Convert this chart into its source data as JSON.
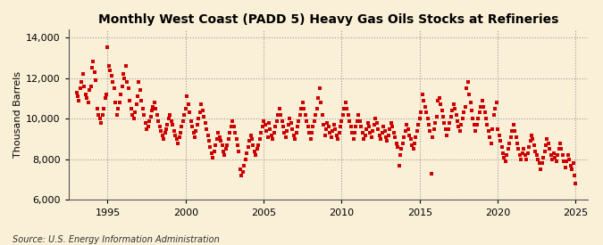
{
  "title": "Monthly West Coast (PADD 5) Heavy Gas Oils Stocks at Refineries",
  "ylabel": "Thousand Barrels",
  "source": "Source: U.S. Energy Information Administration",
  "bg_color": "#FAF0D7",
  "plot_bg_color": "#FAF0D7",
  "marker_color": "#CC0000",
  "xlim": [
    1992.5,
    2025.8
  ],
  "ylim": [
    6000,
    14400
  ],
  "yticks": [
    6000,
    8000,
    10000,
    12000,
    14000
  ],
  "xticks": [
    1995,
    2000,
    2005,
    2010,
    2015,
    2020,
    2025
  ],
  "data": [
    [
      1993.0,
      11300
    ],
    [
      1993.083,
      11100
    ],
    [
      1993.167,
      10900
    ],
    [
      1993.25,
      11500
    ],
    [
      1993.333,
      11800
    ],
    [
      1993.417,
      12200
    ],
    [
      1993.5,
      11600
    ],
    [
      1993.583,
      11200
    ],
    [
      1993.667,
      11000
    ],
    [
      1993.75,
      10800
    ],
    [
      1993.833,
      11400
    ],
    [
      1993.917,
      11600
    ],
    [
      1994.0,
      12500
    ],
    [
      1994.083,
      12800
    ],
    [
      1994.167,
      12300
    ],
    [
      1994.25,
      11900
    ],
    [
      1994.333,
      10500
    ],
    [
      1994.417,
      10200
    ],
    [
      1994.5,
      10000
    ],
    [
      1994.583,
      9800
    ],
    [
      1994.667,
      10200
    ],
    [
      1994.75,
      10500
    ],
    [
      1994.833,
      11000
    ],
    [
      1994.917,
      11200
    ],
    [
      1995.0,
      13500
    ],
    [
      1995.083,
      12600
    ],
    [
      1995.167,
      12400
    ],
    [
      1995.25,
      12100
    ],
    [
      1995.333,
      11800
    ],
    [
      1995.417,
      11500
    ],
    [
      1995.5,
      10800
    ],
    [
      1995.583,
      10200
    ],
    [
      1995.667,
      10500
    ],
    [
      1995.75,
      10800
    ],
    [
      1995.833,
      11200
    ],
    [
      1995.917,
      11600
    ],
    [
      1996.0,
      12200
    ],
    [
      1996.083,
      12000
    ],
    [
      1996.167,
      12600
    ],
    [
      1996.25,
      11800
    ],
    [
      1996.333,
      11500
    ],
    [
      1996.417,
      10900
    ],
    [
      1996.5,
      10500
    ],
    [
      1996.583,
      10200
    ],
    [
      1996.667,
      10000
    ],
    [
      1996.75,
      10300
    ],
    [
      1996.833,
      10700
    ],
    [
      1996.917,
      11100
    ],
    [
      1997.0,
      11800
    ],
    [
      1997.083,
      11400
    ],
    [
      1997.167,
      10900
    ],
    [
      1997.25,
      10500
    ],
    [
      1997.333,
      10200
    ],
    [
      1997.417,
      9800
    ],
    [
      1997.5,
      9500
    ],
    [
      1997.583,
      9600
    ],
    [
      1997.667,
      9900
    ],
    [
      1997.75,
      10100
    ],
    [
      1997.833,
      10400
    ],
    [
      1997.917,
      10600
    ],
    [
      1998.0,
      10800
    ],
    [
      1998.083,
      10500
    ],
    [
      1998.167,
      10200
    ],
    [
      1998.25,
      9900
    ],
    [
      1998.333,
      9600
    ],
    [
      1998.417,
      9400
    ],
    [
      1998.5,
      9200
    ],
    [
      1998.583,
      9000
    ],
    [
      1998.667,
      9300
    ],
    [
      1998.75,
      9500
    ],
    [
      1998.833,
      9700
    ],
    [
      1998.917,
      10000
    ],
    [
      1999.0,
      10200
    ],
    [
      1999.083,
      9900
    ],
    [
      1999.167,
      9700
    ],
    [
      1999.25,
      9400
    ],
    [
      1999.333,
      9200
    ],
    [
      1999.417,
      9000
    ],
    [
      1999.5,
      8800
    ],
    [
      1999.583,
      9100
    ],
    [
      1999.667,
      9300
    ],
    [
      1999.75,
      9600
    ],
    [
      1999.833,
      9900
    ],
    [
      1999.917,
      10200
    ],
    [
      2000.0,
      10500
    ],
    [
      2000.083,
      11100
    ],
    [
      2000.167,
      10700
    ],
    [
      2000.25,
      10300
    ],
    [
      2000.333,
      9900
    ],
    [
      2000.417,
      9600
    ],
    [
      2000.5,
      9300
    ],
    [
      2000.583,
      9100
    ],
    [
      2000.667,
      9400
    ],
    [
      2000.75,
      9700
    ],
    [
      2000.833,
      10000
    ],
    [
      2000.917,
      10300
    ],
    [
      2001.0,
      10700
    ],
    [
      2001.083,
      10400
    ],
    [
      2001.167,
      10100
    ],
    [
      2001.25,
      9800
    ],
    [
      2001.333,
      9500
    ],
    [
      2001.417,
      9200
    ],
    [
      2001.5,
      8900
    ],
    [
      2001.583,
      8600
    ],
    [
      2001.667,
      8300
    ],
    [
      2001.75,
      8100
    ],
    [
      2001.833,
      8400
    ],
    [
      2001.917,
      8700
    ],
    [
      2002.0,
      9000
    ],
    [
      2002.083,
      9300
    ],
    [
      2002.167,
      9100
    ],
    [
      2002.25,
      8900
    ],
    [
      2002.333,
      8700
    ],
    [
      2002.417,
      8400
    ],
    [
      2002.5,
      8200
    ],
    [
      2002.583,
      8500
    ],
    [
      2002.667,
      8700
    ],
    [
      2002.75,
      9000
    ],
    [
      2002.833,
      9300
    ],
    [
      2002.917,
      9600
    ],
    [
      2003.0,
      9900
    ],
    [
      2003.083,
      9600
    ],
    [
      2003.167,
      9300
    ],
    [
      2003.25,
      9000
    ],
    [
      2003.333,
      8700
    ],
    [
      2003.417,
      8400
    ],
    [
      2003.5,
      7500
    ],
    [
      2003.583,
      7200
    ],
    [
      2003.667,
      7400
    ],
    [
      2003.75,
      7700
    ],
    [
      2003.833,
      8000
    ],
    [
      2003.917,
      8300
    ],
    [
      2004.0,
      8600
    ],
    [
      2004.083,
      8900
    ],
    [
      2004.167,
      9200
    ],
    [
      2004.25,
      9000
    ],
    [
      2004.333,
      8700
    ],
    [
      2004.417,
      8400
    ],
    [
      2004.5,
      8200
    ],
    [
      2004.583,
      8500
    ],
    [
      2004.667,
      8700
    ],
    [
      2004.75,
      9000
    ],
    [
      2004.833,
      9300
    ],
    [
      2004.917,
      9600
    ],
    [
      2005.0,
      9900
    ],
    [
      2005.083,
      9700
    ],
    [
      2005.167,
      9400
    ],
    [
      2005.25,
      9100
    ],
    [
      2005.333,
      9800
    ],
    [
      2005.417,
      9500
    ],
    [
      2005.5,
      9200
    ],
    [
      2005.583,
      9000
    ],
    [
      2005.667,
      9300
    ],
    [
      2005.75,
      9600
    ],
    [
      2005.833,
      9900
    ],
    [
      2005.917,
      10200
    ],
    [
      2006.0,
      10500
    ],
    [
      2006.083,
      10200
    ],
    [
      2006.167,
      9900
    ],
    [
      2006.25,
      9600
    ],
    [
      2006.333,
      9300
    ],
    [
      2006.417,
      9100
    ],
    [
      2006.5,
      9400
    ],
    [
      2006.583,
      9700
    ],
    [
      2006.667,
      10000
    ],
    [
      2006.75,
      9800
    ],
    [
      2006.833,
      9500
    ],
    [
      2006.917,
      9200
    ],
    [
      2007.0,
      9000
    ],
    [
      2007.083,
      9300
    ],
    [
      2007.167,
      9600
    ],
    [
      2007.25,
      9900
    ],
    [
      2007.333,
      10200
    ],
    [
      2007.417,
      10500
    ],
    [
      2007.5,
      10800
    ],
    [
      2007.583,
      10500
    ],
    [
      2007.667,
      10200
    ],
    [
      2007.75,
      9900
    ],
    [
      2007.833,
      9600
    ],
    [
      2007.917,
      9300
    ],
    [
      2008.0,
      9000
    ],
    [
      2008.083,
      9300
    ],
    [
      2008.167,
      9600
    ],
    [
      2008.25,
      9900
    ],
    [
      2008.333,
      10200
    ],
    [
      2008.417,
      10500
    ],
    [
      2008.5,
      11000
    ],
    [
      2008.583,
      11500
    ],
    [
      2008.667,
      10800
    ],
    [
      2008.75,
      10200
    ],
    [
      2008.833,
      9700
    ],
    [
      2008.917,
      9200
    ],
    [
      2009.0,
      9500
    ],
    [
      2009.083,
      9800
    ],
    [
      2009.167,
      9600
    ],
    [
      2009.25,
      9300
    ],
    [
      2009.333,
      9100
    ],
    [
      2009.417,
      9400
    ],
    [
      2009.5,
      9700
    ],
    [
      2009.583,
      9500
    ],
    [
      2009.667,
      9200
    ],
    [
      2009.75,
      9000
    ],
    [
      2009.833,
      9300
    ],
    [
      2009.917,
      9600
    ],
    [
      2010.0,
      9900
    ],
    [
      2010.083,
      10200
    ],
    [
      2010.167,
      10500
    ],
    [
      2010.25,
      10800
    ],
    [
      2010.333,
      10500
    ],
    [
      2010.417,
      10200
    ],
    [
      2010.5,
      9900
    ],
    [
      2010.583,
      9600
    ],
    [
      2010.667,
      9300
    ],
    [
      2010.75,
      9000
    ],
    [
      2010.833,
      9300
    ],
    [
      2010.917,
      9600
    ],
    [
      2011.0,
      9900
    ],
    [
      2011.083,
      10200
    ],
    [
      2011.167,
      9900
    ],
    [
      2011.25,
      9600
    ],
    [
      2011.333,
      9300
    ],
    [
      2011.417,
      9000
    ],
    [
      2011.5,
      9200
    ],
    [
      2011.583,
      9500
    ],
    [
      2011.667,
      9800
    ],
    [
      2011.75,
      9600
    ],
    [
      2011.833,
      9300
    ],
    [
      2011.917,
      9100
    ],
    [
      2012.0,
      9400
    ],
    [
      2012.083,
      9700
    ],
    [
      2012.167,
      10000
    ],
    [
      2012.25,
      9800
    ],
    [
      2012.333,
      9500
    ],
    [
      2012.417,
      9200
    ],
    [
      2012.5,
      9000
    ],
    [
      2012.583,
      9300
    ],
    [
      2012.667,
      9600
    ],
    [
      2012.75,
      9400
    ],
    [
      2012.833,
      9100
    ],
    [
      2012.917,
      8900
    ],
    [
      2013.0,
      9200
    ],
    [
      2013.083,
      9500
    ],
    [
      2013.167,
      9800
    ],
    [
      2013.25,
      9600
    ],
    [
      2013.333,
      9300
    ],
    [
      2013.417,
      9100
    ],
    [
      2013.5,
      8800
    ],
    [
      2013.583,
      8600
    ],
    [
      2013.667,
      7700
    ],
    [
      2013.75,
      8200
    ],
    [
      2013.833,
      8500
    ],
    [
      2013.917,
      8800
    ],
    [
      2014.0,
      9100
    ],
    [
      2014.083,
      9400
    ],
    [
      2014.167,
      9700
    ],
    [
      2014.25,
      9500
    ],
    [
      2014.333,
      9200
    ],
    [
      2014.417,
      9000
    ],
    [
      2014.5,
      8700
    ],
    [
      2014.583,
      8500
    ],
    [
      2014.667,
      8800
    ],
    [
      2014.75,
      9100
    ],
    [
      2014.833,
      9400
    ],
    [
      2014.917,
      9700
    ],
    [
      2015.0,
      10000
    ],
    [
      2015.083,
      10300
    ],
    [
      2015.167,
      11200
    ],
    [
      2015.25,
      10900
    ],
    [
      2015.333,
      10600
    ],
    [
      2015.417,
      10300
    ],
    [
      2015.5,
      10000
    ],
    [
      2015.583,
      9700
    ],
    [
      2015.667,
      9400
    ],
    [
      2015.75,
      7300
    ],
    [
      2015.833,
      9100
    ],
    [
      2015.917,
      9500
    ],
    [
      2016.0,
      9800
    ],
    [
      2016.083,
      10100
    ],
    [
      2016.167,
      10900
    ],
    [
      2016.25,
      11000
    ],
    [
      2016.333,
      10700
    ],
    [
      2016.417,
      10400
    ],
    [
      2016.5,
      10100
    ],
    [
      2016.583,
      9800
    ],
    [
      2016.667,
      9500
    ],
    [
      2016.75,
      9200
    ],
    [
      2016.833,
      9500
    ],
    [
      2016.917,
      9800
    ],
    [
      2017.0,
      10100
    ],
    [
      2017.083,
      10400
    ],
    [
      2017.167,
      10700
    ],
    [
      2017.25,
      10500
    ],
    [
      2017.333,
      10200
    ],
    [
      2017.417,
      9900
    ],
    [
      2017.5,
      9600
    ],
    [
      2017.583,
      9400
    ],
    [
      2017.667,
      9700
    ],
    [
      2017.75,
      10000
    ],
    [
      2017.833,
      10300
    ],
    [
      2017.917,
      10600
    ],
    [
      2018.0,
      11500
    ],
    [
      2018.083,
      11800
    ],
    [
      2018.167,
      11200
    ],
    [
      2018.25,
      10800
    ],
    [
      2018.333,
      10400
    ],
    [
      2018.417,
      10000
    ],
    [
      2018.5,
      9700
    ],
    [
      2018.583,
      9400
    ],
    [
      2018.667,
      9700
    ],
    [
      2018.75,
      10000
    ],
    [
      2018.833,
      10300
    ],
    [
      2018.917,
      10600
    ],
    [
      2019.0,
      10900
    ],
    [
      2019.083,
      10600
    ],
    [
      2019.167,
      10300
    ],
    [
      2019.25,
      10000
    ],
    [
      2019.333,
      9700
    ],
    [
      2019.417,
      9400
    ],
    [
      2019.5,
      9100
    ],
    [
      2019.583,
      8800
    ],
    [
      2019.667,
      9500
    ],
    [
      2019.75,
      10200
    ],
    [
      2019.833,
      10500
    ],
    [
      2019.917,
      10800
    ],
    [
      2020.0,
      9500
    ],
    [
      2020.083,
      9200
    ],
    [
      2020.167,
      8900
    ],
    [
      2020.25,
      8600
    ],
    [
      2020.333,
      8300
    ],
    [
      2020.417,
      8100
    ],
    [
      2020.5,
      7900
    ],
    [
      2020.583,
      8200
    ],
    [
      2020.667,
      8500
    ],
    [
      2020.75,
      8800
    ],
    [
      2020.833,
      9100
    ],
    [
      2020.917,
      9400
    ],
    [
      2021.0,
      9700
    ],
    [
      2021.083,
      9400
    ],
    [
      2021.167,
      9100
    ],
    [
      2021.25,
      8800
    ],
    [
      2021.333,
      8500
    ],
    [
      2021.417,
      8200
    ],
    [
      2021.5,
      8000
    ],
    [
      2021.583,
      8300
    ],
    [
      2021.667,
      8500
    ],
    [
      2021.75,
      8200
    ],
    [
      2021.833,
      8000
    ],
    [
      2021.917,
      8300
    ],
    [
      2022.0,
      8600
    ],
    [
      2022.083,
      8900
    ],
    [
      2022.167,
      9200
    ],
    [
      2022.25,
      9000
    ],
    [
      2022.333,
      8700
    ],
    [
      2022.417,
      8400
    ],
    [
      2022.5,
      8200
    ],
    [
      2022.583,
      8000
    ],
    [
      2022.667,
      7800
    ],
    [
      2022.75,
      7500
    ],
    [
      2022.833,
      7800
    ],
    [
      2022.917,
      8100
    ],
    [
      2023.0,
      8400
    ],
    [
      2023.083,
      8700
    ],
    [
      2023.167,
      9000
    ],
    [
      2023.25,
      8800
    ],
    [
      2023.333,
      8500
    ],
    [
      2023.417,
      8200
    ],
    [
      2023.5,
      8000
    ],
    [
      2023.583,
      8300
    ],
    [
      2023.667,
      8100
    ],
    [
      2023.75,
      7900
    ],
    [
      2023.833,
      8200
    ],
    [
      2023.917,
      8500
    ],
    [
      2024.0,
      8800
    ],
    [
      2024.083,
      8500
    ],
    [
      2024.167,
      8200
    ],
    [
      2024.25,
      7900
    ],
    [
      2024.333,
      7600
    ],
    [
      2024.417,
      7900
    ],
    [
      2024.5,
      8200
    ],
    [
      2024.583,
      8000
    ],
    [
      2024.667,
      7700
    ],
    [
      2024.75,
      7500
    ],
    [
      2024.833,
      7800
    ],
    [
      2024.917,
      7200
    ],
    [
      2025.0,
      6800
    ]
  ]
}
